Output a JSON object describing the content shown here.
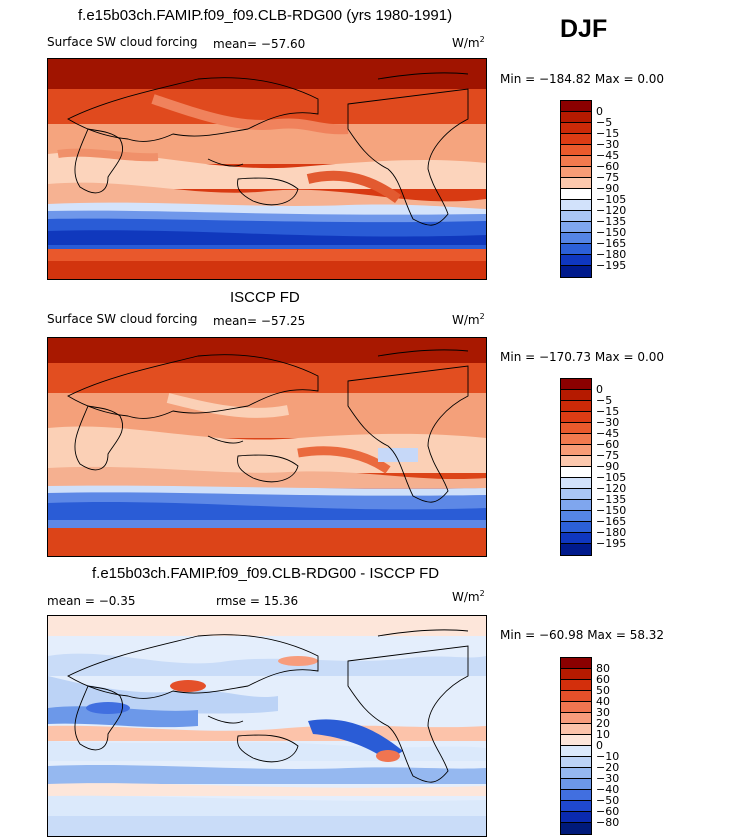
{
  "season": "DJF",
  "panels": [
    {
      "title": "f.e15b03ch.FAMIP.f09_f09.CLB-RDG00 (yrs 1980-1991)",
      "left_label": "Surface SW cloud forcing",
      "mean_label": "mean=  −57.60",
      "units": "W/m",
      "units_sup": "2",
      "minmax": "Min = −184.82 Max =    0.00"
    },
    {
      "title": "ISCCP FD",
      "left_label": "Surface SW cloud forcing",
      "mean_label": "mean=  −57.25",
      "units": "W/m",
      "units_sup": "2",
      "minmax": "Min = −170.73 Max =    0.00"
    },
    {
      "title": "f.e15b03ch.FAMIP.f09_f09.CLB-RDG00 - ISCCP FD",
      "mean_label": "mean =   −0.35",
      "rmse_label": "rmse =   15.36",
      "units": "W/m",
      "units_sup": "2",
      "minmax": "Min = −60.98 Max =   58.32"
    }
  ],
  "colorbars": {
    "field": {
      "ticks": [
        "0",
        "−5",
        "−15",
        "−30",
        "−45",
        "−60",
        "−75",
        "−90",
        "−105",
        "−120",
        "−135",
        "−150",
        "−165",
        "−180",
        "−195"
      ],
      "colors": [
        "#8b0000",
        "#b51a00",
        "#cc2a08",
        "#dd3c14",
        "#ea5a2c",
        "#f27a4e",
        "#f79c76",
        "#fcc8ad",
        "#ffffff",
        "#d2e2fb",
        "#aac6f5",
        "#7fa6ee",
        "#5585e6",
        "#2c60d8",
        "#0f37bf",
        "#001a8c"
      ]
    },
    "diff": {
      "ticks": [
        "80",
        "60",
        "50",
        "40",
        "30",
        "20",
        "10",
        "0",
        "−10",
        "−20",
        "−30",
        "−40",
        "−50",
        "−60",
        "−80"
      ],
      "colors": [
        "#8b0000",
        "#b51a00",
        "#d32f0c",
        "#e4502a",
        "#f07550",
        "#f79c7c",
        "#fcc3aa",
        "#fde6da",
        "#dbe9fb",
        "#bcd3f6",
        "#95b8f0",
        "#6c98e9",
        "#416fe0",
        "#1f48cf",
        "#0a2ab0",
        "#001a7a"
      ]
    }
  }
}
